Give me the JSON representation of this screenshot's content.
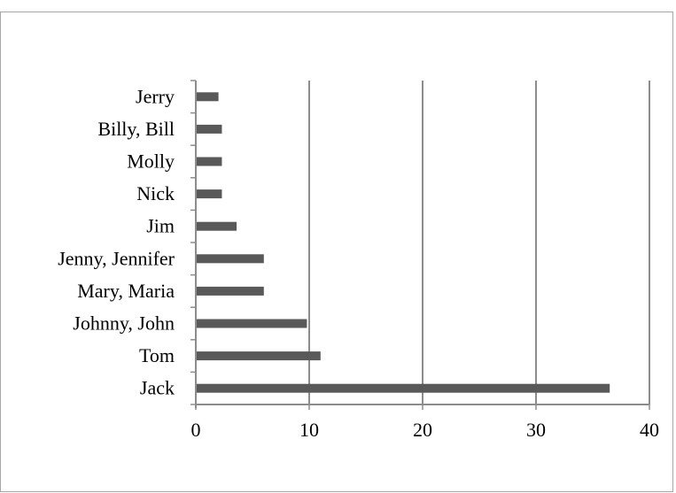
{
  "chart_data": {
    "type": "bar",
    "orientation": "horizontal",
    "categories": [
      "Jack",
      "Tom",
      "Johnny, John",
      "Mary, Maria",
      "Jenny, Jennifer",
      "Jim",
      "Nick",
      "Molly",
      "Billy, Bill",
      "Jerry"
    ],
    "values": [
      36.5,
      11,
      9.8,
      6,
      6,
      3.6,
      2.3,
      2.3,
      2.3,
      2
    ],
    "title": "",
    "xlabel": "",
    "ylabel": "",
    "xlim": [
      0,
      40
    ],
    "xticks": [
      0,
      10,
      20,
      30,
      40
    ],
    "grid": "vertical",
    "legend": "none",
    "bar_color": "#595959",
    "grid_color": "#8c8c8c"
  }
}
